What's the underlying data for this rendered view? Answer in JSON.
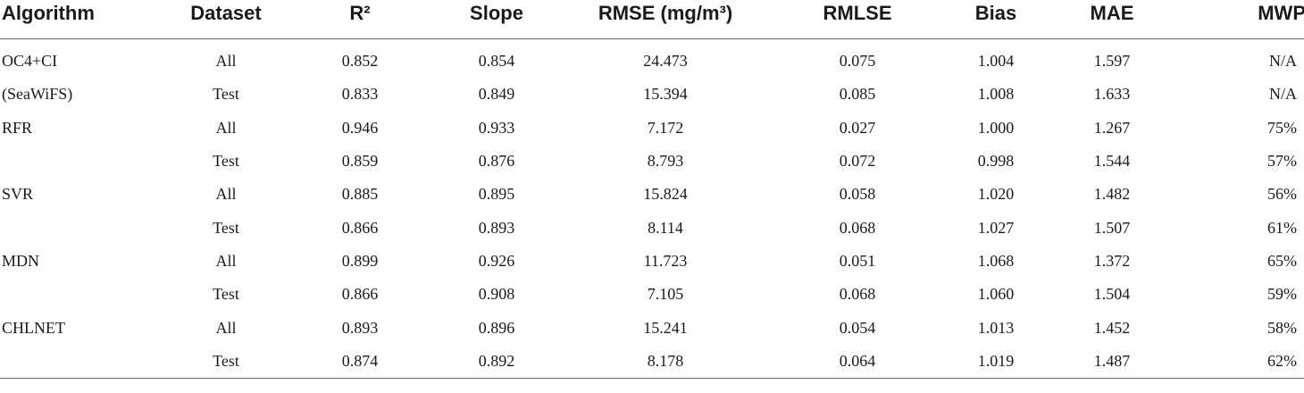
{
  "table": {
    "headers": {
      "algorithm": "Algorithm",
      "dataset": "Dataset",
      "r2": "R²",
      "slope": "Slope",
      "rmse": "RMSE (mg/m³)",
      "rmlse": "RMLSE",
      "bias": "Bias",
      "mae": "MAE",
      "mwp": "MWP"
    },
    "groups": [
      {
        "algorithm_line1": "OC4+CI",
        "algorithm_line2": "(SeaWiFS)",
        "rows": [
          {
            "dataset": "All",
            "r2": "0.852",
            "slope": "0.854",
            "rmse": "24.473",
            "rmlse": "0.075",
            "bias": "1.004",
            "mae": "1.597",
            "mwp": "N/A"
          },
          {
            "dataset": "Test",
            "r2": "0.833",
            "slope": "0.849",
            "rmse": "15.394",
            "rmlse": "0.085",
            "bias": "1.008",
            "mae": "1.633",
            "mwp": "N/A"
          }
        ]
      },
      {
        "algorithm_line1": "RFR",
        "rows": [
          {
            "dataset": "All",
            "r2": "0.946",
            "slope": "0.933",
            "rmse": "7.172",
            "rmlse": "0.027",
            "bias": "1.000",
            "mae": "1.267",
            "mwp": "75%"
          },
          {
            "dataset": "Test",
            "r2": "0.859",
            "slope": "0.876",
            "rmse": "8.793",
            "rmlse": "0.072",
            "bias": "0.998",
            "mae": "1.544",
            "mwp": "57%"
          }
        ]
      },
      {
        "algorithm_line1": "SVR",
        "rows": [
          {
            "dataset": "All",
            "r2": "0.885",
            "slope": "0.895",
            "rmse": "15.824",
            "rmlse": "0.058",
            "bias": "1.020",
            "mae": "1.482",
            "mwp": "56%"
          },
          {
            "dataset": "Test",
            "r2": "0.866",
            "slope": "0.893",
            "rmse": "8.114",
            "rmlse": "0.068",
            "bias": "1.027",
            "mae": "1.507",
            "mwp": "61%"
          }
        ]
      },
      {
        "algorithm_line1": "MDN",
        "rows": [
          {
            "dataset": "All",
            "r2": "0.899",
            "slope": "0.926",
            "rmse": "11.723",
            "rmlse": "0.051",
            "bias": "1.068",
            "mae": "1.372",
            "mwp": "65%"
          },
          {
            "dataset": "Test",
            "r2": "0.866",
            "slope": "0.908",
            "rmse": "7.105",
            "rmlse": "0.068",
            "bias": "1.060",
            "mae": "1.504",
            "mwp": "59%"
          }
        ]
      },
      {
        "algorithm_line1": "CHLNET",
        "rows": [
          {
            "dataset": "All",
            "r2": "0.893",
            "slope": "0.896",
            "rmse": "15.241",
            "rmlse": "0.054",
            "bias": "1.013",
            "mae": "1.452",
            "mwp": "58%"
          },
          {
            "dataset": "Test",
            "r2": "0.874",
            "slope": "0.892",
            "rmse": "8.178",
            "rmlse": "0.064",
            "bias": "1.019",
            "mae": "1.487",
            "mwp": "62%"
          }
        ]
      }
    ]
  }
}
